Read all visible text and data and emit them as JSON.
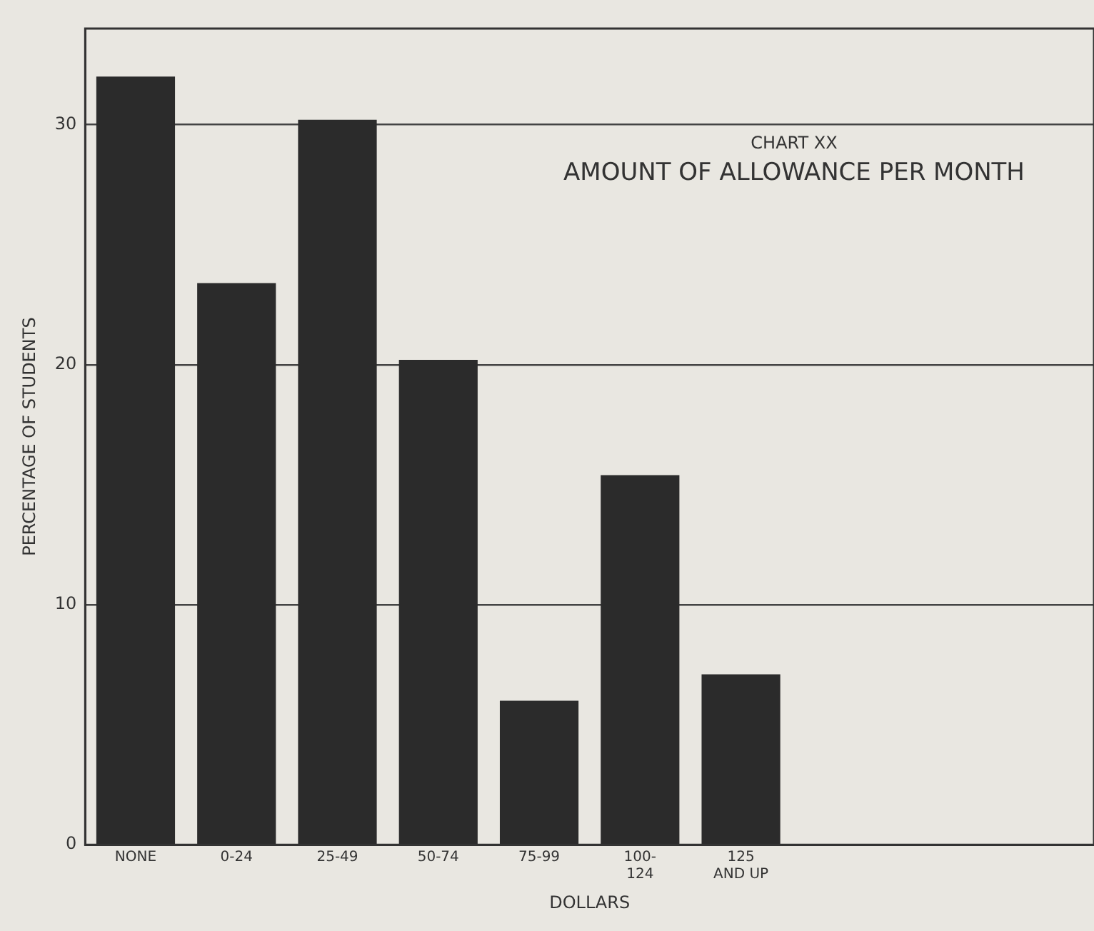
{
  "chart_data": {
    "type": "bar",
    "title": "CHART XX",
    "subtitle": "AMOUNT OF ALLOWANCE PER MONTH",
    "xlabel": "DOLLARS",
    "ylabel": "PERCENTAGE OF STUDENTS",
    "categories": [
      "NONE",
      "0-24",
      "25-49",
      "50-74",
      "75-99",
      "100-124",
      "125 AND UP"
    ],
    "values": [
      32,
      23.4,
      30.2,
      20.2,
      6,
      15.4,
      7.1
    ],
    "color": "#2b2b2b",
    "ylim": [
      0,
      34
    ],
    "yticks": [
      0,
      10,
      20,
      30
    ],
    "grid": "y",
    "legend": false
  }
}
